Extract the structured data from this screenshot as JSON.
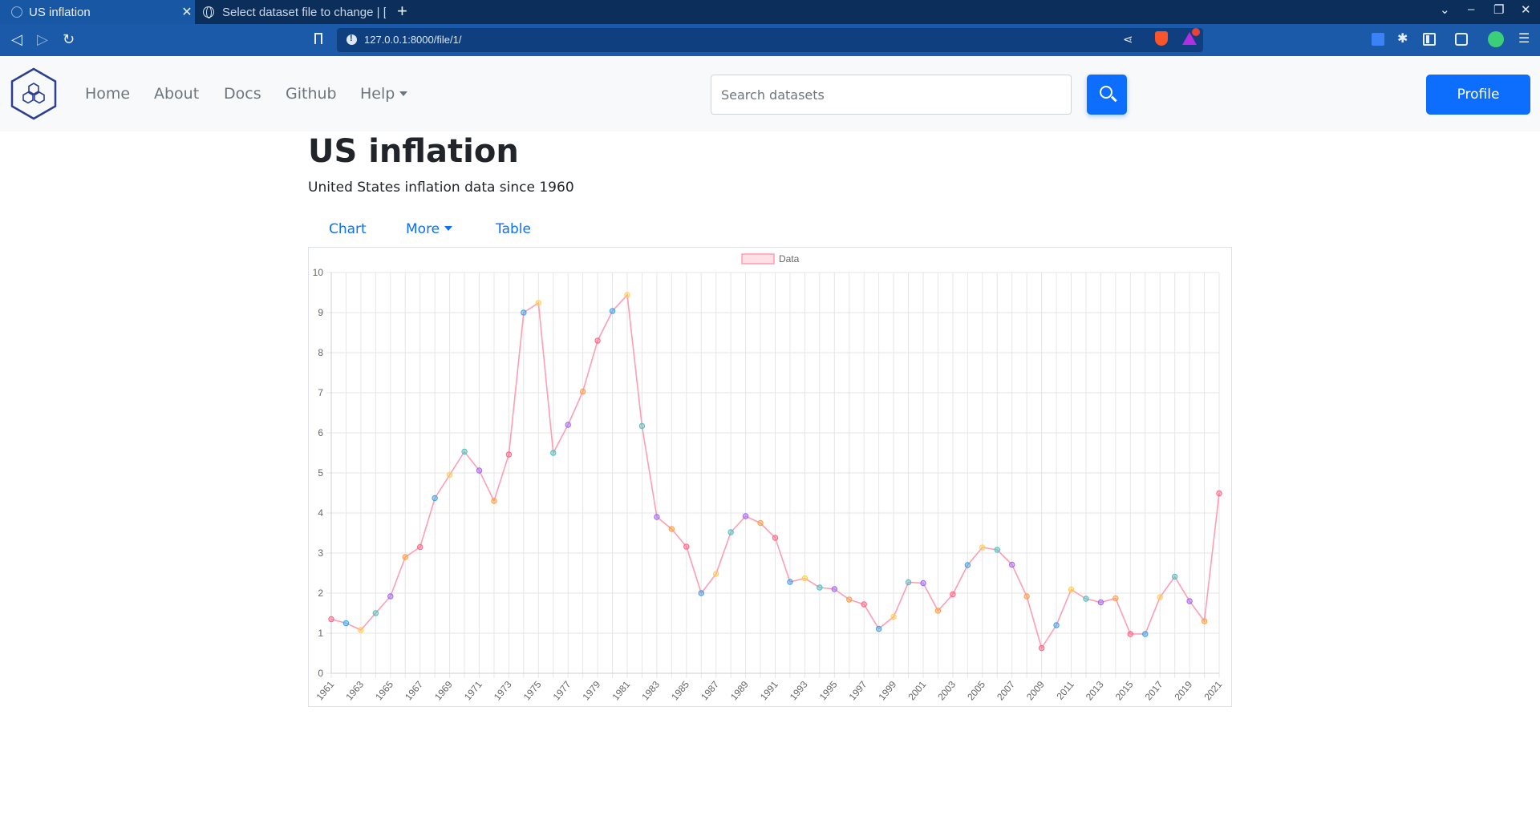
{
  "browser": {
    "tabs": [
      {
        "title": "US inflation",
        "active": true
      },
      {
        "title": "Select dataset file to change | [",
        "active": false
      }
    ],
    "url": "127.0.0.1:8000/file/1/"
  },
  "navbar": {
    "links": [
      "Home",
      "About",
      "Docs",
      "Github"
    ],
    "help_label": "Help",
    "search_placeholder": "Search datasets",
    "profile_label": "Profile"
  },
  "page": {
    "title": "US inflation",
    "subtitle": "United States inflation data since 1960",
    "tabs": {
      "chart": "Chart",
      "more": "More",
      "table": "Table"
    }
  },
  "colors": {
    "accent": "#0d6efd",
    "line": "#ff9db3",
    "point_colors": [
      "#ff6384",
      "#36a2eb",
      "#ffce56",
      "#4bc0c0",
      "#9966ff",
      "#ff9f40"
    ]
  },
  "chart_data": {
    "type": "line",
    "legend": {
      "label": "Data",
      "position": "top"
    },
    "grid": true,
    "ylim": [
      0,
      10
    ],
    "yticks": [
      0,
      1,
      2,
      3,
      4,
      5,
      6,
      7,
      8,
      9,
      10
    ],
    "x_tick_labels": [
      "1961",
      "1963",
      "1965",
      "1967",
      "1969",
      "1971",
      "1973",
      "1975",
      "1977",
      "1979",
      "1981",
      "1983",
      "1985",
      "1987",
      "1989",
      "1991",
      "1993",
      "1995",
      "1997",
      "1999",
      "2001",
      "2003",
      "2005",
      "2007",
      "2009",
      "2011",
      "2013",
      "2015",
      "2017",
      "2019",
      "2021"
    ],
    "x": [
      1961,
      1962,
      1963,
      1964,
      1965,
      1966,
      1967,
      1968,
      1969,
      1970,
      1971,
      1972,
      1973,
      1974,
      1975,
      1976,
      1977,
      1978,
      1979,
      1980,
      1981,
      1982,
      1983,
      1984,
      1985,
      1986,
      1987,
      1988,
      1989,
      1990,
      1991,
      1992,
      1993,
      1994,
      1995,
      1996,
      1997,
      1998,
      1999,
      2000,
      2001,
      2002,
      2003,
      2004,
      2005,
      2006,
      2007,
      2008,
      2009,
      2010,
      2011,
      2012,
      2013,
      2014,
      2015,
      2016,
      2017,
      2018,
      2019,
      2020,
      2021
    ],
    "series": [
      {
        "name": "Data",
        "values": [
          1.35,
          1.25,
          1.08,
          1.5,
          1.92,
          2.9,
          3.15,
          4.37,
          4.95,
          5.53,
          5.06,
          4.3,
          5.46,
          9.0,
          9.24,
          5.5,
          6.2,
          7.03,
          8.3,
          9.04,
          9.44,
          6.17,
          3.9,
          3.6,
          3.16,
          2.0,
          2.48,
          3.52,
          3.92,
          3.75,
          3.38,
          2.28,
          2.37,
          2.14,
          2.1,
          1.84,
          1.72,
          1.11,
          1.41,
          2.27,
          2.25,
          1.56,
          1.97,
          2.7,
          3.14,
          3.08,
          2.71,
          1.92,
          0.63,
          1.2,
          2.09,
          1.86,
          1.77,
          1.87,
          0.98,
          0.98,
          1.9,
          2.41,
          1.8,
          1.3,
          4.49
        ]
      }
    ]
  }
}
